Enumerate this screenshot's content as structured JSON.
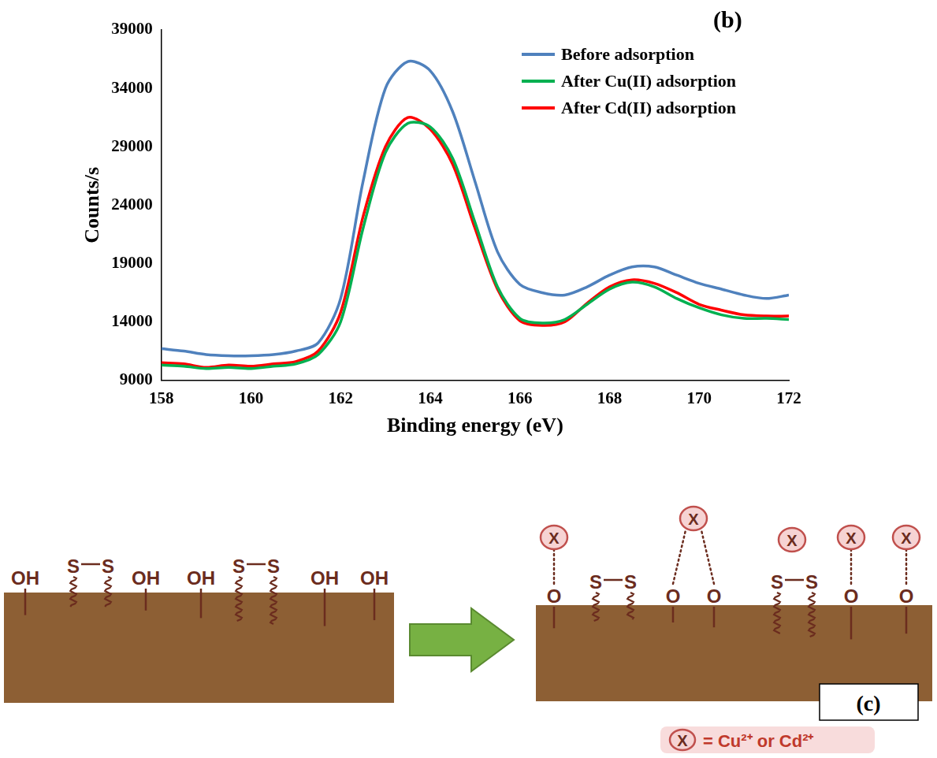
{
  "chart_data": {
    "type": "line",
    "title": "(b)",
    "x_label": "Binding energy (eV)",
    "y_label": "Counts/s",
    "x": [
      158,
      158.5,
      159,
      159.5,
      160,
      160.5,
      161,
      161.5,
      162,
      162.5,
      163,
      163.5,
      164,
      164.5,
      165,
      165.5,
      166,
      166.5,
      167,
      167.5,
      168,
      168.5,
      169,
      169.5,
      170,
      170.5,
      171,
      171.5,
      172
    ],
    "series": [
      {
        "name": "Before adsorption",
        "color": "#4f81bd",
        "values": [
          11700,
          11500,
          11200,
          11100,
          11100,
          11200,
          11500,
          12200,
          16000,
          26000,
          34000,
          36300,
          35500,
          32000,
          26000,
          20000,
          17200,
          16500,
          16300,
          17000,
          18000,
          18700,
          18700,
          18000,
          17300,
          16800,
          16300,
          16000,
          16300
        ]
      },
      {
        "name": "After Cu(II) adsorption",
        "color": "#00b050",
        "values": [
          10300,
          10200,
          10000,
          10100,
          10000,
          10200,
          10400,
          11200,
          14000,
          22000,
          28500,
          31000,
          30700,
          28000,
          22500,
          17000,
          14300,
          13900,
          14200,
          15500,
          16800,
          17400,
          17000,
          16000,
          15200,
          14600,
          14300,
          14300,
          14200
        ]
      },
      {
        "name": "After Cd(II) adsorption",
        "color": "#ff0000",
        "values": [
          10500,
          10400,
          10100,
          10300,
          10200,
          10400,
          10600,
          11500,
          14800,
          23000,
          29000,
          31500,
          30500,
          27500,
          22000,
          16800,
          14100,
          13700,
          14000,
          15600,
          17000,
          17600,
          17300,
          16500,
          15500,
          15000,
          14600,
          14500,
          14500
        ]
      }
    ],
    "xlim": [
      158,
      172
    ],
    "xticks": [
      158,
      160,
      162,
      164,
      166,
      168,
      170,
      172
    ],
    "ylim": [
      9000,
      39000
    ],
    "yticks": [
      9000,
      14000,
      19000,
      24000,
      29000,
      34000,
      39000
    ],
    "grid": false,
    "legend": "upper right"
  },
  "diagram": {
    "before": [
      {
        "type": "hydroxyl",
        "label": "OH"
      },
      {
        "type": "disulfide",
        "atoms": [
          "S",
          "S"
        ]
      },
      {
        "type": "hydroxyl",
        "label": "OH"
      },
      {
        "type": "hydroxyl",
        "label": "OH"
      },
      {
        "type": "disulfide",
        "atoms": [
          "S",
          "S"
        ]
      },
      {
        "type": "hydroxyl",
        "label": "OH"
      },
      {
        "type": "hydroxyl",
        "label": "OH"
      }
    ],
    "after": [
      {
        "type": "bound",
        "atoms": [
          "O"
        ],
        "ion": "X"
      },
      {
        "type": "disulfide",
        "atoms": [
          "S",
          "S"
        ]
      },
      {
        "type": "bound",
        "atoms": [
          "O",
          "O"
        ],
        "ion": "X"
      },
      {
        "type": "disulfide",
        "atoms": [
          "S",
          "S"
        ],
        "ion": "X"
      },
      {
        "type": "bound",
        "atoms": [
          "O"
        ],
        "ion": "X"
      },
      {
        "type": "bound",
        "atoms": [
          "O"
        ],
        "ion": "X"
      }
    ],
    "key": {
      "symbol": "X",
      "text": "= Cu²⁺ or Cd²⁺"
    },
    "panel_label": "(c)"
  }
}
